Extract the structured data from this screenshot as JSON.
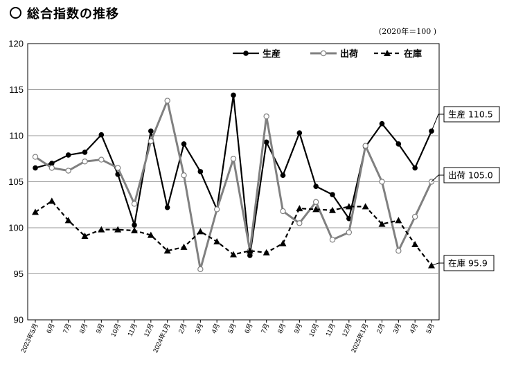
{
  "page": {
    "title": "総合指数の推移",
    "base_note": "(2020年＝100 )"
  },
  "chart_data": {
    "type": "line",
    "categories": [
      "2023年5月",
      "6月",
      "7月",
      "8月",
      "9月",
      "10月",
      "11月",
      "12月",
      "2024年1月",
      "2月",
      "3月",
      "4月",
      "5月",
      "6月",
      "7月",
      "8月",
      "9月",
      "10月",
      "11月",
      "12月",
      "2025年1月",
      "2月",
      "3月",
      "4月",
      "5月"
    ],
    "ylim": [
      90,
      120
    ],
    "yticks": [
      90,
      95,
      100,
      105,
      110,
      115,
      120
    ],
    "grid": true,
    "legend_position": "top-right",
    "series": [
      {
        "name": "生産",
        "color": "#000000",
        "marker": "filled-circle",
        "line": "solid",
        "values": [
          106.5,
          107.0,
          107.9,
          108.2,
          110.1,
          105.8,
          100.3,
          110.5,
          102.2,
          109.1,
          106.1,
          102.0,
          114.4,
          97.0,
          109.3,
          105.7,
          110.3,
          104.5,
          103.6,
          101.0,
          108.8,
          111.3,
          109.1,
          106.5,
          110.5
        ],
        "end_label": "生産 110.5"
      },
      {
        "name": "出荷",
        "color": "#808080",
        "marker": "open-circle",
        "line": "solid",
        "values": [
          107.7,
          106.5,
          106.2,
          107.2,
          107.4,
          106.5,
          102.6,
          109.4,
          113.8,
          105.7,
          95.5,
          102.0,
          107.5,
          97.5,
          112.1,
          101.8,
          100.5,
          102.8,
          98.7,
          99.5,
          108.9,
          105.0,
          97.5,
          101.2,
          105.0
        ],
        "end_label": "出荷 105.0"
      },
      {
        "name": "在庫",
        "color": "#000000",
        "marker": "filled-triangle",
        "line": "dashed",
        "values": [
          101.7,
          102.9,
          100.8,
          99.1,
          99.8,
          99.8,
          99.7,
          99.2,
          97.5,
          97.9,
          99.6,
          98.5,
          97.1,
          97.5,
          97.3,
          98.3,
          102.1,
          102.0,
          101.9,
          102.3,
          102.3,
          100.4,
          100.8,
          98.2,
          95.9
        ],
        "end_label": "在庫 95.9"
      }
    ]
  }
}
